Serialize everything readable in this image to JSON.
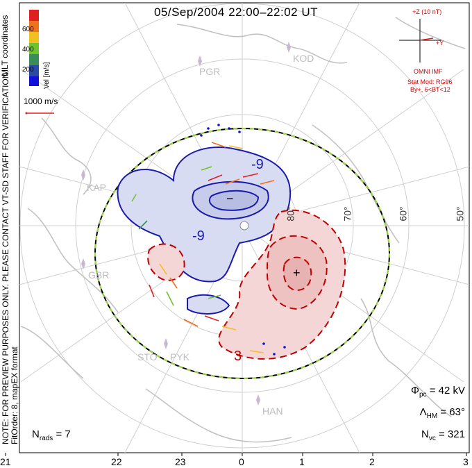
{
  "title": "05/Sep/2004 22:00–22:02 UT",
  "colorbar": {
    "title": "Vel [m/s]",
    "ticks": [
      "600",
      "400",
      "200"
    ],
    "colors": [
      "#e02020",
      "#f07020",
      "#f0c020",
      "#70c030",
      "#3c8c5a",
      "#2a4aa8",
      "#1010d8"
    ]
  },
  "side_note": {
    "line1": "NOTE: FOR PREVIEW PURPOSES ONLY. PLEASE CONTACT VT-SD STAFF FOR VERIFICATION.",
    "line2": "FitOrder: 8, mapEX format",
    "coords": "MLT coordinates"
  },
  "scale_vector": {
    "label": "1000 m/s"
  },
  "imf": {
    "z_label": "+Z (10 nT)",
    "y_label": "+Y",
    "source": "OMNI IMF",
    "model": "Stat Mod: RG96",
    "condition": "By+, 6<BT<12"
  },
  "stats": {
    "phi_pc": {
      "sym": "Φ",
      "sub": "pc",
      "value": "= 42 kV"
    },
    "lambda_hm": {
      "sym": "Λ",
      "sub": "HM",
      "value": "= 63°"
    },
    "n_vc": {
      "sym": "N",
      "sub": "vc",
      "value": "= 321"
    },
    "n_rads": {
      "sym": "N",
      "sub": "rads",
      "value": "= 7"
    }
  },
  "mlt_labels": [
    "21",
    "22",
    "23",
    "0",
    "1",
    "2",
    "3"
  ],
  "lat_labels": [
    "80°",
    "70°",
    "60°",
    "50°"
  ],
  "stations": [
    "PGR",
    "KOD",
    "KAP",
    "GBR",
    "STO",
    "PYK",
    "HAN"
  ],
  "contour_labels": {
    "neg1": "-9",
    "neg2": "-9",
    "pos": "3",
    "min": "−",
    "max": "+"
  }
}
